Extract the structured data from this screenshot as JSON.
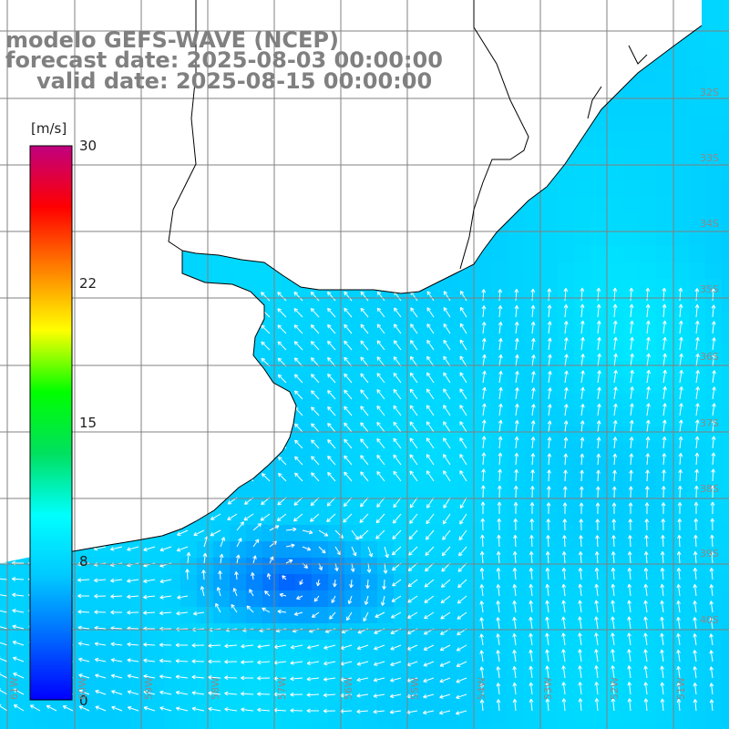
{
  "header": {
    "line1": "modelo GEFS-WAVE (NCEP)",
    "line2": "forecast date: 2025-08-03 00:00:00",
    "line3": "valid date: 2025-08-15 00:00:00"
  },
  "colorbar": {
    "unit": "[m/s]",
    "ticks": [
      "30",
      "22",
      "15",
      "8",
      "0"
    ],
    "colors": [
      "#0000ff",
      "#0066ff",
      "#00c8ff",
      "#00ffff",
      "#00e060",
      "#00ff00",
      "#ffff00",
      "#ff8000",
      "#ff0000",
      "#c00080"
    ]
  },
  "map": {
    "lat_labels": [
      "32S",
      "33S",
      "34S",
      "35S",
      "36S",
      "37S",
      "38S",
      "39S",
      "40S"
    ],
    "lon_labels": [
      "61W",
      "60W",
      "59W",
      "58W",
      "57W",
      "56W",
      "55W",
      "54W",
      "53W",
      "52W",
      "51W"
    ],
    "land_color": "#ffffff",
    "grid_color": "#808080",
    "arrow_color": "#ffffff"
  }
}
